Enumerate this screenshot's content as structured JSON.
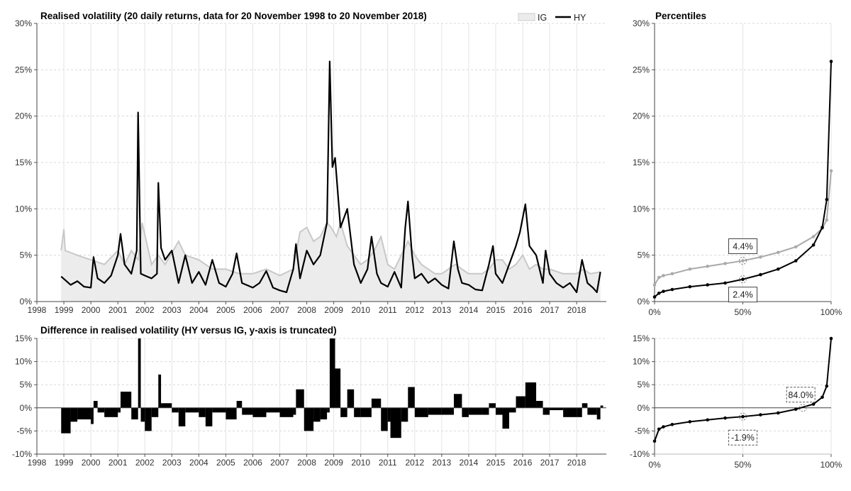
{
  "chart_data": [
    {
      "type": "area+line",
      "title": "Realised volatility (20 daily returns, data for 20 November 1998 to 20 November 2018)",
      "legend": {
        "position": "top-right",
        "entries": [
          "IG",
          "HY"
        ]
      },
      "xlim": [
        1998,
        2019.1
      ],
      "ylim": [
        0,
        30
      ],
      "x_ticks": [
        "1998",
        "1999",
        "2000",
        "2001",
        "2002",
        "2003",
        "2004",
        "2005",
        "2006",
        "2007",
        "2008",
        "2009",
        "2010",
        "2011",
        "2012",
        "2013",
        "2014",
        "2015",
        "2016",
        "2017",
        "2018"
      ],
      "y_ticks": [
        "0%",
        "5%",
        "10%",
        "15%",
        "20%",
        "25%",
        "30%"
      ],
      "grid": true,
      "colors": {
        "IG_fill": "#ececec",
        "IG_line": "#c8c8c8",
        "HY": "#000000"
      },
      "series": [
        {
          "name": "IG",
          "style": "area",
          "x": [
            1998.9,
            1999.0,
            1999.05,
            1999.5,
            2000.0,
            2000.5,
            2001.0,
            2001.25,
            2001.5,
            2001.75,
            2001.9,
            2002.25,
            2002.5,
            2002.75,
            2003.25,
            2003.5,
            2004.0,
            2004.5,
            2005.0,
            2005.5,
            2006.0,
            2006.5,
            2007.0,
            2007.5,
            2007.75,
            2008.0,
            2008.25,
            2008.5,
            2008.75,
            2008.9,
            2009.1,
            2009.25,
            2009.5,
            2009.75,
            2010.0,
            2010.25,
            2010.5,
            2010.75,
            2011.0,
            2011.25,
            2011.5,
            2011.75,
            2012.0,
            2012.25,
            2012.5,
            2012.75,
            2013.0,
            2013.5,
            2013.75,
            2014.0,
            2014.5,
            2014.75,
            2015.0,
            2015.25,
            2015.5,
            2015.75,
            2016.0,
            2016.25,
            2016.5,
            2016.75,
            2017.0,
            2017.5,
            2018.0,
            2018.25,
            2018.5,
            2018.88
          ],
          "values": [
            5.5,
            7.8,
            5.5,
            5.0,
            4.5,
            4.0,
            5.5,
            4.0,
            5.5,
            4.5,
            8.5,
            4.0,
            5.0,
            4.0,
            6.5,
            5.0,
            4.5,
            3.5,
            3.5,
            3.0,
            3.0,
            3.5,
            2.8,
            3.5,
            7.5,
            8.0,
            6.5,
            7.0,
            8.5,
            8.0,
            7.0,
            8.5,
            6.0,
            5.0,
            4.0,
            4.5,
            5.5,
            7.0,
            4.0,
            3.5,
            5.0,
            6.5,
            5.0,
            4.0,
            3.5,
            3.0,
            3.0,
            4.0,
            3.5,
            3.0,
            3.0,
            3.5,
            4.5,
            4.5,
            3.5,
            4.0,
            5.0,
            3.5,
            4.0,
            3.5,
            3.5,
            3.0,
            3.0,
            3.5,
            3.0,
            3.2
          ]
        },
        {
          "name": "HY",
          "style": "line",
          "x": [
            1998.9,
            1999.25,
            1999.5,
            1999.75,
            2000.0,
            2000.1,
            2000.25,
            2000.5,
            2000.75,
            2001.0,
            2001.1,
            2001.25,
            2001.5,
            2001.7,
            2001.75,
            2001.85,
            2002.0,
            2002.25,
            2002.45,
            2002.5,
            2002.6,
            2002.75,
            2003.0,
            2003.25,
            2003.5,
            2003.75,
            2004.0,
            2004.25,
            2004.5,
            2004.75,
            2005.0,
            2005.25,
            2005.4,
            2005.6,
            2006.0,
            2006.25,
            2006.5,
            2006.75,
            2007.0,
            2007.25,
            2007.5,
            2007.6,
            2007.75,
            2008.0,
            2008.25,
            2008.5,
            2008.75,
            2008.85,
            2008.95,
            2009.05,
            2009.25,
            2009.5,
            2009.75,
            2010.0,
            2010.25,
            2010.4,
            2010.6,
            2010.75,
            2011.0,
            2011.25,
            2011.5,
            2011.65,
            2011.75,
            2011.9,
            2012.0,
            2012.25,
            2012.5,
            2012.75,
            2013.0,
            2013.25,
            2013.45,
            2013.6,
            2013.75,
            2014.0,
            2014.25,
            2014.5,
            2014.75,
            2014.9,
            2015.0,
            2015.25,
            2015.5,
            2015.75,
            2015.9,
            2016.1,
            2016.25,
            2016.5,
            2016.75,
            2016.85,
            2017.0,
            2017.25,
            2017.5,
            2017.75,
            2018.0,
            2018.2,
            2018.4,
            2018.6,
            2018.75,
            2018.88
          ],
          "values": [
            2.7,
            1.8,
            2.2,
            1.6,
            1.5,
            4.8,
            2.5,
            2.0,
            2.8,
            5.0,
            7.3,
            4.0,
            3.0,
            5.5,
            20.4,
            3.0,
            2.8,
            2.5,
            3.0,
            12.8,
            5.8,
            4.5,
            5.5,
            2.0,
            5.0,
            2.0,
            3.2,
            1.8,
            4.5,
            2.0,
            1.6,
            3.0,
            5.2,
            2.0,
            1.5,
            2.0,
            3.3,
            1.5,
            1.2,
            1.0,
            3.5,
            6.2,
            2.5,
            5.5,
            4.0,
            5.0,
            8.5,
            25.9,
            14.5,
            15.5,
            8.0,
            10.0,
            4.0,
            2.0,
            3.5,
            7.0,
            3.0,
            2.0,
            1.6,
            3.2,
            1.5,
            8.0,
            10.8,
            5.0,
            2.5,
            3.0,
            2.0,
            2.5,
            1.8,
            1.4,
            6.5,
            3.5,
            2.0,
            1.8,
            1.3,
            1.2,
            4.0,
            6.0,
            3.0,
            2.0,
            4.0,
            6.0,
            7.5,
            10.5,
            6.0,
            5.0,
            2.0,
            5.5,
            3.0,
            2.0,
            1.5,
            2.0,
            1.0,
            4.5,
            2.0,
            1.5,
            1.0,
            3.2
          ]
        }
      ]
    },
    {
      "type": "line",
      "title": "Percentiles",
      "xlim": [
        0,
        100
      ],
      "ylim": [
        0,
        30
      ],
      "x_ticks": [
        "0%",
        "50%",
        "100%"
      ],
      "y_ticks": [
        "0%",
        "5%",
        "10%",
        "15%",
        "20%",
        "25%",
        "30%"
      ],
      "x": [
        0,
        2.5,
        5,
        10,
        20,
        30,
        40,
        50,
        60,
        70,
        80,
        90,
        95,
        97.5,
        100
      ],
      "series": [
        {
          "name": "IG",
          "color": "#aaaaaa",
          "values": [
            1.8,
            2.6,
            2.8,
            3.0,
            3.5,
            3.8,
            4.1,
            4.4,
            4.8,
            5.3,
            5.9,
            7.0,
            7.9,
            8.8,
            14.1
          ]
        },
        {
          "name": "HY",
          "color": "#000000",
          "values": [
            0.5,
            0.9,
            1.1,
            1.3,
            1.6,
            1.8,
            2.0,
            2.4,
            2.9,
            3.5,
            4.4,
            6.1,
            8.0,
            11.0,
            25.9
          ]
        }
      ],
      "annotations": [
        {
          "text": "4.4%",
          "x": 50,
          "y": 4.4,
          "series": "IG"
        },
        {
          "text": "2.4%",
          "x": 50,
          "y": 2.4,
          "series": "HY"
        }
      ]
    },
    {
      "type": "area",
      "title": "Difference in realised volatility (HY versus IG, y-axis is truncated)",
      "xlim": [
        1998,
        2019.1
      ],
      "ylim": [
        -10,
        15
      ],
      "x_ticks": [
        "1998",
        "1999",
        "2000",
        "2001",
        "2002",
        "2003",
        "2004",
        "2005",
        "2006",
        "2007",
        "2008",
        "2009",
        "2010",
        "2011",
        "2012",
        "2013",
        "2014",
        "2015",
        "2016",
        "2017",
        "2018"
      ],
      "y_ticks": [
        "-10%",
        "-5%",
        "0%",
        "5%",
        "10%",
        "15%"
      ],
      "series": [
        {
          "name": "",
          "color": "#000000",
          "x": [
            1998.9,
            1999.25,
            1999.5,
            2000.0,
            2000.1,
            2000.25,
            2000.5,
            2001.0,
            2001.1,
            2001.5,
            2001.75,
            2001.85,
            2002.0,
            2002.25,
            2002.5,
            2002.6,
            2003.0,
            2003.25,
            2003.5,
            2004.0,
            2004.25,
            2004.5,
            2005.0,
            2005.4,
            2005.6,
            2006.0,
            2006.5,
            2007.0,
            2007.5,
            2007.6,
            2007.9,
            2008.25,
            2008.5,
            2008.75,
            2008.85,
            2009.05,
            2009.25,
            2009.5,
            2009.75,
            2010.0,
            2010.4,
            2010.75,
            2011.0,
            2011.1,
            2011.5,
            2011.75,
            2012.0,
            2012.5,
            2013.0,
            2013.45,
            2013.75,
            2014.0,
            2014.5,
            2014.75,
            2015.0,
            2015.25,
            2015.5,
            2015.75,
            2016.1,
            2016.5,
            2016.75,
            2017.0,
            2017.5,
            2018.0,
            2018.2,
            2018.4,
            2018.75,
            2018.88
          ],
          "values": [
            -5.5,
            -3.0,
            -2.5,
            -3.5,
            1.5,
            -1.0,
            -2.0,
            -1.0,
            3.5,
            -2.5,
            15,
            -3.0,
            -5.0,
            -2.0,
            7.2,
            1.0,
            -1.0,
            -4.0,
            -1.0,
            -2.0,
            -4.0,
            -1.0,
            -2.5,
            1.5,
            -1.5,
            -2.0,
            -1.0,
            -2.0,
            -1.5,
            4.0,
            -5.0,
            -3.0,
            -2.5,
            -1.0,
            15,
            8.5,
            -2.0,
            4.0,
            -2.0,
            -2.0,
            2.0,
            -5.0,
            -3.0,
            -6.5,
            -3.0,
            4.5,
            -2.0,
            -1.5,
            -1.5,
            3.0,
            -2.0,
            -1.5,
            -1.5,
            1.0,
            -1.5,
            -4.5,
            -1.0,
            2.5,
            5.5,
            1.5,
            -1.5,
            -0.5,
            -2.0,
            -2.0,
            1.0,
            -1.5,
            -2.5,
            0.5
          ]
        }
      ]
    },
    {
      "type": "line",
      "xlim": [
        0,
        100
      ],
      "ylim": [
        -10,
        15
      ],
      "x_ticks": [
        "0%",
        "50%",
        "100%"
      ],
      "y_ticks": [
        "-10%",
        "-5%",
        "0%",
        "5%",
        "10%",
        "15%"
      ],
      "x": [
        0,
        2.5,
        5,
        10,
        20,
        30,
        40,
        50,
        60,
        70,
        80,
        90,
        95,
        97.5,
        100
      ],
      "series": [
        {
          "name": "",
          "color": "#000000",
          "values": [
            -7.2,
            -4.6,
            -4.1,
            -3.6,
            -3.0,
            -2.6,
            -2.2,
            -1.9,
            -1.5,
            -1.1,
            -0.3,
            0.8,
            2.3,
            4.7,
            15
          ]
        }
      ],
      "annotations": [
        {
          "text": "-1.9%",
          "x": 50,
          "y": -1.9
        },
        {
          "text": "84.0%",
          "x": 84,
          "y": 0
        }
      ]
    }
  ]
}
